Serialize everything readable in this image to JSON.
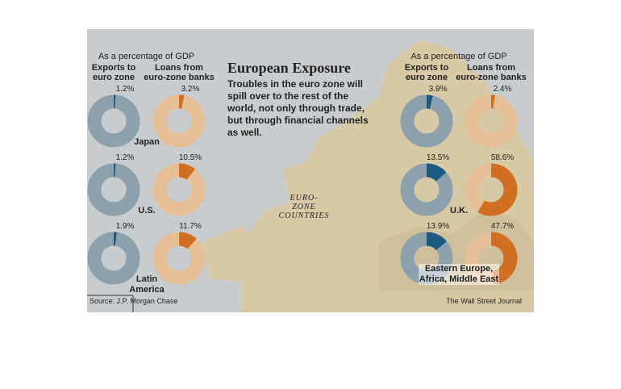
{
  "title": "European Exposure",
  "subtitle": "Troubles in the euro zone will spill over to the rest of the world, not only through trade, but through financial channels as well.",
  "map_label": "EURO-ZONE COUNTRIES",
  "source": "Source: J.P. Morgan Chase",
  "credit": "The Wall Street Journal",
  "panels": [
    {
      "caption": "As a percentage of GDP",
      "columns": [
        "Exports to euro zone",
        "Loans from euro-zone banks"
      ],
      "rows": [
        {
          "name": "Japan",
          "values": [
            1.2,
            3.2
          ],
          "value_labels": [
            "1.2%",
            "3.2%"
          ]
        },
        {
          "name": "U.S.",
          "values": [
            1.2,
            10.5
          ],
          "value_labels": [
            "1.2%",
            "10.5%"
          ]
        },
        {
          "name": "Latin America",
          "values": [
            1.9,
            11.7
          ],
          "value_labels": [
            "1.9%",
            "11.7%"
          ]
        }
      ]
    },
    {
      "caption": "As a percentage of GDP",
      "columns": [
        "Exports to euro zone",
        "Loans from euro-zone banks"
      ],
      "rows": [
        {
          "name": "",
          "values": [
            3.9,
            2.4
          ],
          "value_labels": [
            "3.9%",
            "2.4%"
          ]
        },
        {
          "name": "U.K.",
          "values": [
            13.5,
            58.6
          ],
          "value_labels": [
            "13.5%",
            "58.6%"
          ]
        },
        {
          "name": "Eastern Europe, Africa, Middle East",
          "values": [
            13.9,
            47.7
          ],
          "value_labels": [
            "13.9%",
            "47.7%"
          ]
        }
      ]
    }
  ]
}
